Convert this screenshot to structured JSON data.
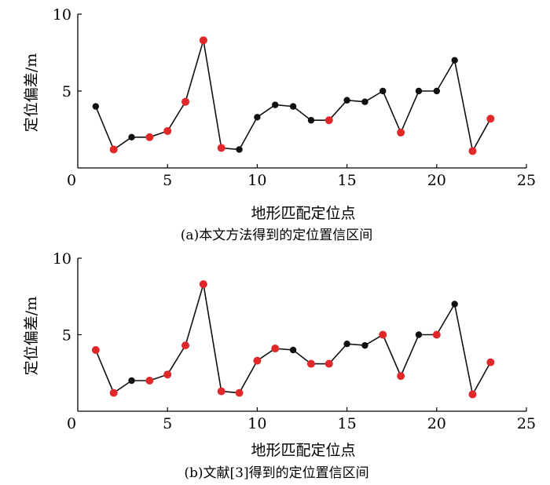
{
  "colors": {
    "black_point": "#111111",
    "red_point": "#e0282a",
    "line": "#111111",
    "axis": "#000000"
  },
  "chart_data": [
    {
      "type": "line",
      "caption": "(a)本文方法得到的定位置信区间",
      "xlabel": "地形匹配定位点",
      "ylabel": "定位偏差/m",
      "xlim": [
        0,
        25
      ],
      "ylim": [
        0,
        10
      ],
      "xticks": [
        0,
        5,
        10,
        15,
        20,
        25
      ],
      "yticks": [
        5,
        10
      ],
      "x": [
        1,
        2,
        3,
        4,
        5,
        6,
        7,
        8,
        9,
        10,
        11,
        12,
        13,
        14,
        15,
        16,
        17,
        18,
        19,
        20,
        21,
        22,
        23
      ],
      "values": [
        4.0,
        1.2,
        2.0,
        2.0,
        2.4,
        4.3,
        8.3,
        1.3,
        1.2,
        3.3,
        4.1,
        4.0,
        3.1,
        3.1,
        4.4,
        4.3,
        5.0,
        2.3,
        5.0,
        5.0,
        7.0,
        1.1,
        3.2
      ],
      "point_colors": [
        "black",
        "red",
        "black",
        "red",
        "red",
        "red",
        "red",
        "red",
        "black",
        "black",
        "black",
        "black",
        "black",
        "red",
        "black",
        "black",
        "black",
        "red",
        "black",
        "black",
        "black",
        "red",
        "red"
      ]
    },
    {
      "type": "line",
      "caption": "(b)文献[3]得到的定位置信区间",
      "xlabel": "地形匹配定位点",
      "ylabel": "定位偏差/m",
      "xlim": [
        0,
        25
      ],
      "ylim": [
        0,
        10
      ],
      "xticks": [
        0,
        5,
        10,
        15,
        20,
        25
      ],
      "yticks": [
        5,
        10
      ],
      "x": [
        1,
        2,
        3,
        4,
        5,
        6,
        7,
        8,
        9,
        10,
        11,
        12,
        13,
        14,
        15,
        16,
        17,
        18,
        19,
        20,
        21,
        22,
        23
      ],
      "values": [
        4.0,
        1.2,
        2.0,
        2.0,
        2.4,
        4.3,
        8.3,
        1.3,
        1.2,
        3.3,
        4.1,
        4.0,
        3.1,
        3.1,
        4.4,
        4.3,
        5.0,
        2.3,
        5.0,
        5.0,
        7.0,
        1.1,
        3.2
      ],
      "point_colors": [
        "red",
        "red",
        "black",
        "red",
        "red",
        "red",
        "red",
        "red",
        "red",
        "red",
        "red",
        "black",
        "red",
        "red",
        "black",
        "black",
        "red",
        "red",
        "black",
        "red",
        "black",
        "red",
        "red"
      ]
    }
  ]
}
